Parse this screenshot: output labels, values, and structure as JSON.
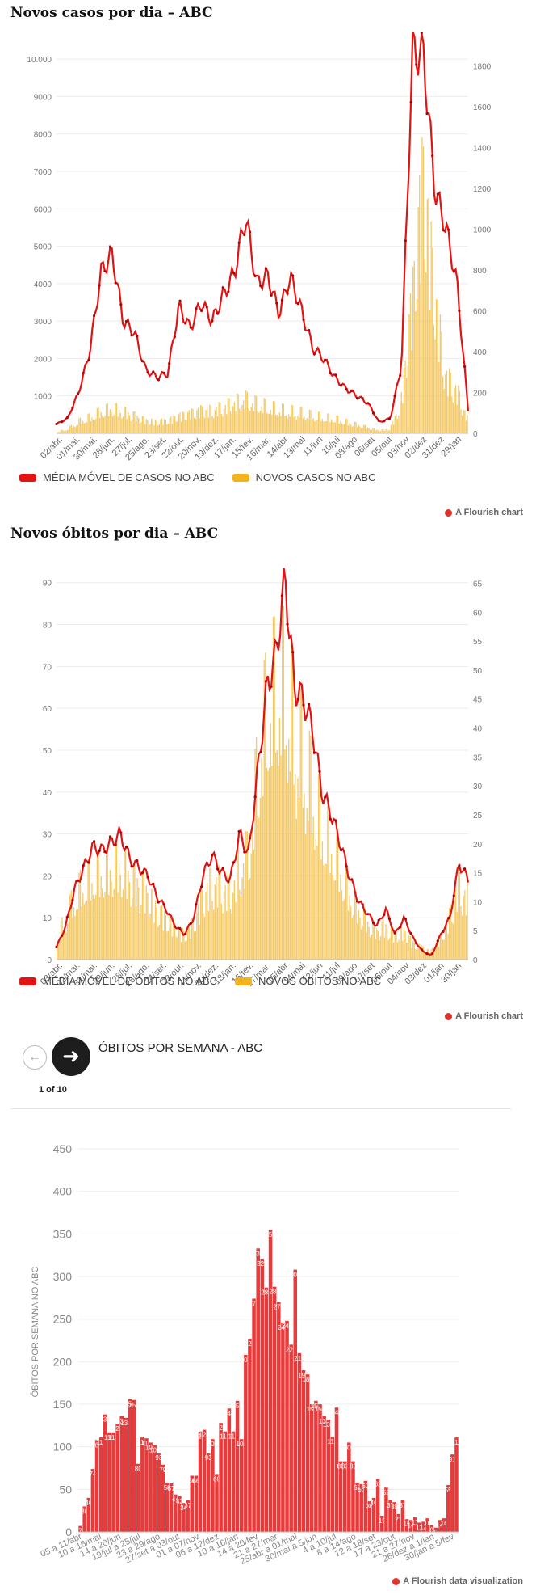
{
  "chart1": {
    "title": "Novos casos por dia – ABC",
    "legend": [
      "MÉDIA MÓVEL DE CASOS NO ABC",
      "NOVOS CASOS NO ABC"
    ],
    "credit": "A Flourish chart"
  },
  "chart2": {
    "title": "Novos óbitos por dia – ABC",
    "legend": [
      "MÉDIA MÓVEL DE ÓBITOS NO ABC",
      "NOVOS ÓBITOS NO ABC"
    ],
    "credit": "A Flourish chart"
  },
  "nav": {
    "title": "ÓBITOS POR SEMANA - ABC",
    "count": "1 of 10",
    "prev_icon": "arrow-left-icon",
    "next_icon": "arrow-right-icon"
  },
  "chart3_credit": "A Flourish data visualization",
  "colors": {
    "line": "#e21313",
    "bar": "#f2c14e",
    "bar_red": "#e83a3a"
  },
  "chart_data": [
    {
      "type": "line",
      "title": "Novos casos por dia – ABC",
      "left_axis": {
        "ticks": [
          1000,
          2000,
          3000,
          4000,
          5000,
          6000,
          7000,
          8000,
          9000,
          10000
        ],
        "tick_labels": [
          "1000",
          "2000",
          "3000",
          "4000",
          "5000",
          "6000",
          "7000",
          "8000",
          "9000",
          "10.000"
        ],
        "range": [
          0,
          10500
        ]
      },
      "right_axis": {
        "ticks": [
          0,
          200,
          400,
          600,
          800,
          1000,
          1200,
          1400,
          1600,
          1800
        ],
        "range": [
          0,
          1925
        ]
      },
      "x_ticks": [
        "02/abr.",
        "01/mai.",
        "30/mai.",
        "28/jun.",
        "27/jul.",
        "25/ago.",
        "23/set.",
        "22/out.",
        "20/nov.",
        "19/dez.",
        "17/jan.",
        "15/fev.",
        "16/mar.",
        "14/abr",
        "13/mai",
        "11/jun",
        "10/jul",
        "08/ago",
        "06/set",
        "05/out",
        "03/nov",
        "02/dez",
        "31/dez",
        "29/jan"
      ],
      "series": [
        {
          "name": "MÉDIA MÓVEL DE CASOS NO ABC",
          "axis": "left",
          "values": [
            250,
            400,
            1100,
            2200,
            4300,
            4800,
            3000,
            2700,
            1700,
            1500,
            1600,
            3400,
            2800,
            3500,
            3000,
            3700,
            4300,
            5800,
            4000,
            4200,
            3200,
            4200,
            3300,
            2300,
            2000,
            1500,
            1200,
            1000,
            800,
            300,
            400,
            1800,
            10200,
            10100,
            6500,
            5500,
            4000,
            600
          ]
        },
        {
          "name": "NOVOS CASOS NO ABC",
          "axis": "right",
          "values": [
            10,
            30,
            80,
            110,
            150,
            170,
            150,
            120,
            90,
            80,
            90,
            120,
            140,
            160,
            160,
            180,
            210,
            230,
            200,
            180,
            160,
            150,
            140,
            120,
            110,
            100,
            80,
            60,
            40,
            20,
            30,
            200,
            900,
            1800,
            1000,
            400,
            300,
            100
          ]
        }
      ]
    },
    {
      "type": "line",
      "title": "Novos óbitos por dia – ABC",
      "left_axis": {
        "ticks": [
          0,
          10,
          20,
          30,
          40,
          50,
          60,
          70,
          80,
          90
        ],
        "range": [
          0,
          94
        ]
      },
      "right_axis": {
        "ticks": [
          0,
          5,
          10,
          15,
          20,
          25,
          30,
          35,
          40,
          45,
          50,
          55,
          60,
          65
        ],
        "range": [
          0,
          68
        ]
      },
      "x_ticks": [
        "03/abr.",
        "02/mai.",
        "31/mai.",
        "29/jun.",
        "28/jul.",
        "26/ago.",
        "24/set.",
        "23/out.",
        "21/nov.",
        "20/dez.",
        "18/jan.",
        "16/fev.",
        "17/mar.",
        "15/abr",
        "14/mai",
        "12/jun",
        "11/jul",
        "09/ago",
        "07/set",
        "06/out",
        "04/nov",
        "03/dez",
        "01/jan",
        "30/jan"
      ],
      "series": [
        {
          "name": "MÉDIA MÓVEL DE ÓBITOS NO ABC",
          "axis": "left",
          "values": [
            3,
            8,
            17,
            22,
            27,
            26,
            28,
            30,
            24,
            22,
            20,
            15,
            12,
            8,
            6,
            10,
            20,
            25,
            21,
            19,
            30,
            25,
            45,
            65,
            73,
            91,
            65,
            62,
            55,
            40,
            35,
            28,
            20,
            14,
            11,
            8,
            12,
            6,
            10,
            5,
            2,
            1,
            6,
            10,
            23,
            19
          ]
        },
        {
          "name": "NOVOS ÓBITOS NO ABC",
          "axis": "right",
          "values": [
            5,
            10,
            15,
            18,
            20,
            21,
            22,
            23,
            20,
            18,
            16,
            12,
            10,
            8,
            6,
            9,
            15,
            19,
            18,
            16,
            22,
            25,
            45,
            60,
            65,
            66,
            55,
            48,
            40,
            32,
            28,
            22,
            16,
            12,
            9,
            7,
            8,
            6,
            7,
            4,
            3,
            2,
            5,
            10,
            18,
            15
          ]
        }
      ]
    },
    {
      "type": "bar",
      "title": "ÓBITOS POR SEMANA - ABC",
      "ylabel": "ÓBITOS POR SEMANA NO ABC",
      "y_ticks": [
        0,
        50,
        100,
        150,
        200,
        250,
        300,
        350,
        400,
        450
      ],
      "ylim": [
        0,
        470
      ],
      "x_ticks": [
        "05 a 11/abr",
        "10 a 16/mai",
        "14 a 20/jun",
        "19/jul a 25/jul",
        "23 a 29/ago",
        "27/set a 03/out",
        "01 a 07/nov",
        "06 a 12/dez",
        "10 a 16/jan",
        "14 a 20/fev",
        "21 a 27/mar",
        "25/abr a 01/mai",
        "30/mai a 5/jun",
        "4 a 10/jul",
        "8 a 14/ago",
        "12 a 18/set",
        "17 a 23/out",
        "21 a 27/nov",
        "26/dez a 1/jan",
        "30/jan a 5/fev"
      ],
      "values": [
        7,
        30,
        40,
        74,
        108,
        111,
        138,
        117,
        117,
        127,
        136,
        134,
        156,
        155,
        80,
        111,
        110,
        105,
        102,
        93,
        79,
        58,
        57,
        44,
        42,
        34,
        37,
        66,
        66,
        118,
        120,
        93,
        109,
        68,
        128,
        118,
        145,
        118,
        154,
        109,
        208,
        227,
        274,
        333,
        321,
        287,
        355,
        288,
        270,
        246,
        248,
        220,
        308,
        210,
        190,
        185,
        150,
        154,
        150,
        136,
        132,
        112,
        146,
        83,
        83,
        105,
        83,
        58,
        56,
        60,
        36,
        40,
        62,
        19,
        52,
        37,
        35,
        21,
        37,
        15,
        14,
        17,
        11,
        12,
        16,
        8,
        5,
        14,
        16,
        55,
        91,
        111
      ]
    }
  ]
}
